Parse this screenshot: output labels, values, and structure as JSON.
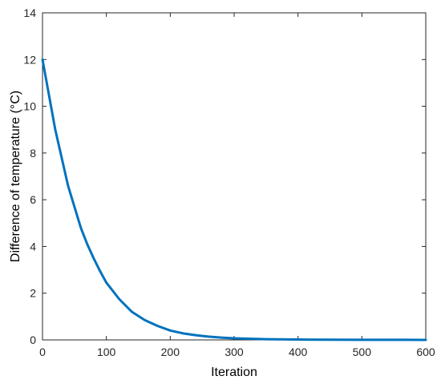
{
  "chart_data": {
    "type": "line",
    "xlabel": "Iteration",
    "ylabel": "Difference of temperature (°C)",
    "xlim": [
      0,
      600
    ],
    "ylim": [
      0,
      14
    ],
    "xticks": [
      0,
      100,
      200,
      300,
      400,
      500,
      600
    ],
    "yticks": [
      0,
      2,
      4,
      6,
      8,
      10,
      12,
      14
    ],
    "grid": false,
    "series": [
      {
        "color": "#0072BD",
        "x": [
          0,
          10,
          20,
          30,
          40,
          50,
          60,
          70,
          80,
          90,
          100,
          120,
          140,
          160,
          180,
          200,
          220,
          240,
          260,
          280,
          300,
          350,
          400,
          450,
          500,
          550,
          600
        ],
        "y": [
          12.0,
          10.5,
          9.0,
          7.8,
          6.6,
          5.7,
          4.8,
          4.1,
          3.5,
          2.95,
          2.45,
          1.75,
          1.2,
          0.85,
          0.6,
          0.4,
          0.28,
          0.2,
          0.14,
          0.1,
          0.07,
          0.03,
          0.015,
          0.008,
          0.005,
          0.003,
          0.002
        ]
      }
    ]
  }
}
